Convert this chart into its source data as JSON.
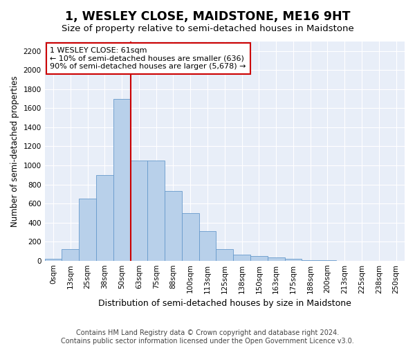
{
  "title": "1, WESLEY CLOSE, MAIDSTONE, ME16 9HT",
  "subtitle": "Size of property relative to semi-detached houses in Maidstone",
  "xlabel": "Distribution of semi-detached houses by size in Maidstone",
  "ylabel": "Number of semi-detached properties",
  "footer_line1": "Contains HM Land Registry data © Crown copyright and database right 2024.",
  "footer_line2": "Contains public sector information licensed under the Open Government Licence v3.0.",
  "bin_labels": [
    "0sqm",
    "13sqm",
    "25sqm",
    "38sqm",
    "50sqm",
    "63sqm",
    "75sqm",
    "88sqm",
    "100sqm",
    "113sqm",
    "125sqm",
    "138sqm",
    "150sqm",
    "163sqm",
    "175sqm",
    "188sqm",
    "200sqm",
    "213sqm",
    "225sqm",
    "238sqm",
    "250sqm"
  ],
  "bar_values": [
    20,
    120,
    650,
    900,
    1700,
    1050,
    1050,
    730,
    500,
    310,
    120,
    65,
    50,
    35,
    20,
    5,
    2,
    1,
    1,
    1,
    0
  ],
  "bar_color": "#b8d0ea",
  "bar_edge_color": "#6699cc",
  "ylim": [
    0,
    2300
  ],
  "yticks": [
    0,
    200,
    400,
    600,
    800,
    1000,
    1200,
    1400,
    1600,
    1800,
    2000,
    2200
  ],
  "vline_position": 4.5,
  "annotation_title": "1 WESLEY CLOSE: 61sqm",
  "annotation_line2": "← 10% of semi-detached houses are smaller (636)",
  "annotation_line3": "90% of semi-detached houses are larger (5,678) →",
  "vline_color": "#cc0000",
  "annotation_edge_color": "#cc0000",
  "bg_color": "#e8eef8",
  "grid_color": "white",
  "title_fontsize": 12.5,
  "subtitle_fontsize": 9.5,
  "xlabel_fontsize": 9,
  "ylabel_fontsize": 8.5,
  "tick_fontsize": 7.5,
  "annotation_fontsize": 8,
  "footer_fontsize": 7
}
